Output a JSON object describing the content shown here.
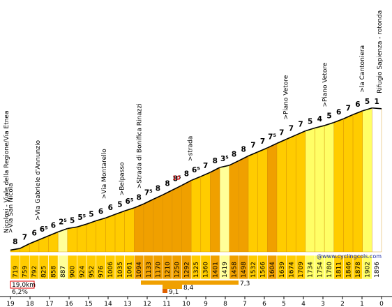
{
  "chart_data": {
    "type": "area",
    "title": "",
    "xlabel": "",
    "ylabel": "",
    "credit": "@www.cyclingcols.com",
    "x_ticks": [
      "19",
      "18",
      "17",
      "16",
      "15",
      "14",
      "13",
      "12",
      "11",
      "10",
      "9",
      "8",
      "7",
      "6",
      "5",
      "4",
      "3",
      "2",
      "1",
      "0"
    ],
    "segments": [
      {
        "gradient": "8",
        "alt": "719",
        "color": "#ffcc00"
      },
      {
        "gradient": "7",
        "alt": "759",
        "color": "#ffcc00"
      },
      {
        "gradient": "6",
        "alt": "792",
        "color": "#ffcc00"
      },
      {
        "gradient": "6⁵",
        "alt": "825",
        "color": "#ffcc00"
      },
      {
        "gradient": "6",
        "alt": "858",
        "color": "#ffcc00"
      },
      {
        "gradient": "2⁵",
        "alt": "887",
        "color": "#ffff99"
      },
      {
        "gradient": "5",
        "alt": "900",
        "color": "#ffcc00"
      },
      {
        "gradient": "5⁵",
        "alt": "924",
        "color": "#ffcc00"
      },
      {
        "gradient": "5",
        "alt": "952",
        "color": "#ffcc00"
      },
      {
        "gradient": "6",
        "alt": "976",
        "color": "#ffcc00"
      },
      {
        "gradient": "6",
        "alt": "1006",
        "color": "#ffcc00"
      },
      {
        "gradient": "5",
        "alt": "1035",
        "color": "#ffcc00"
      },
      {
        "gradient": "6⁵",
        "alt": "1061",
        "color": "#ffcc00"
      },
      {
        "gradient": "8",
        "alt": "1094",
        "color": "#f0a000"
      },
      {
        "gradient": "7⁵",
        "alt": "1133",
        "color": "#f0a000"
      },
      {
        "gradient": "8",
        "alt": "1170",
        "color": "#f0a000"
      },
      {
        "gradient": "8",
        "alt": "1210",
        "color": "#f0a000"
      },
      {
        "gradient": "8⁵",
        "alt": "1250",
        "color": "#f0a000"
      },
      {
        "gradient": "8",
        "alt": "1292",
        "color": "#f0a000"
      },
      {
        "gradient": "6⁵",
        "alt": "1325",
        "color": "#ffcc00"
      },
      {
        "gradient": "7",
        "alt": "1360",
        "color": "#ffcc00"
      },
      {
        "gradient": "8",
        "alt": "1401",
        "color": "#f0a000"
      },
      {
        "gradient": "3⁵",
        "alt": "1419",
        "color": "#ffff99"
      },
      {
        "gradient": "8",
        "alt": "1458",
        "color": "#f0a000"
      },
      {
        "gradient": "8",
        "alt": "1498",
        "color": "#f0a000"
      },
      {
        "gradient": "7",
        "alt": "1532",
        "color": "#ffcc00"
      },
      {
        "gradient": "7",
        "alt": "1566",
        "color": "#ffcc00"
      },
      {
        "gradient": "7⁵",
        "alt": "1604",
        "color": "#f0a000"
      },
      {
        "gradient": "7",
        "alt": "1639",
        "color": "#ffcc00"
      },
      {
        "gradient": "7",
        "alt": "1674",
        "color": "#ffcc00"
      },
      {
        "gradient": "7",
        "alt": "1709",
        "color": "#ffcc00"
      },
      {
        "gradient": "5",
        "alt": "1734",
        "color": "#ffff66"
      },
      {
        "gradient": "4",
        "alt": "1754",
        "color": "#ffff66"
      },
      {
        "gradient": "5",
        "alt": "1780",
        "color": "#ffff66"
      },
      {
        "gradient": "6",
        "alt": "1811",
        "color": "#ffcc00"
      },
      {
        "gradient": "7",
        "alt": "1846",
        "color": "#ffcc00"
      },
      {
        "gradient": "6",
        "alt": "1878",
        "color": "#ffcc00"
      },
      {
        "gradient": "5",
        "alt": "1902",
        "color": "#ffff66"
      },
      {
        "gradient": "1",
        "alt": "1896",
        "color": "#ffffff"
      }
    ],
    "extra_labels": [
      {
        "text": "10",
        "km": 10.5,
        "color": "#e00000"
      }
    ],
    "places": [
      {
        "text": "Nicolosi - Viale della Regione/Via Etnea",
        "km": 19.1
      },
      {
        "text": ">Via San Nicola",
        "km": 18.9
      },
      {
        "text": ">Via Gabriele d'Annunzio",
        "km": 17.5
      },
      {
        "text": ">Via Montarello",
        "km": 14.1
      },
      {
        "text": ">Belpasso",
        "km": 13.2
      },
      {
        "text": ">Strada di Bonifica Rinazzi",
        "km": 12.3
      },
      {
        "text": ">strada",
        "km": 9.7
      },
      {
        "text": ">Piano Vetore",
        "km": 4.8
      },
      {
        "text": ">Piano Vetore",
        "km": 2.8
      },
      {
        "text": ">la Cantoniera",
        "km": 0.9
      },
      {
        "text": "Rifugio Sapienza - rotonda",
        "km": 0.0
      }
    ],
    "legend": [
      {
        "text": "19,0km",
        "color": "#000000"
      },
      {
        "text": "6,2%",
        "color": "#000000"
      },
      {
        "text": "7,3",
        "value": 7.3,
        "color": "#f0a000"
      },
      {
        "text": "8,4",
        "value": 8.4,
        "color": "#f0a000"
      },
      {
        "text": "9,1",
        "value": 9.1,
        "color": "#e06000"
      }
    ]
  }
}
